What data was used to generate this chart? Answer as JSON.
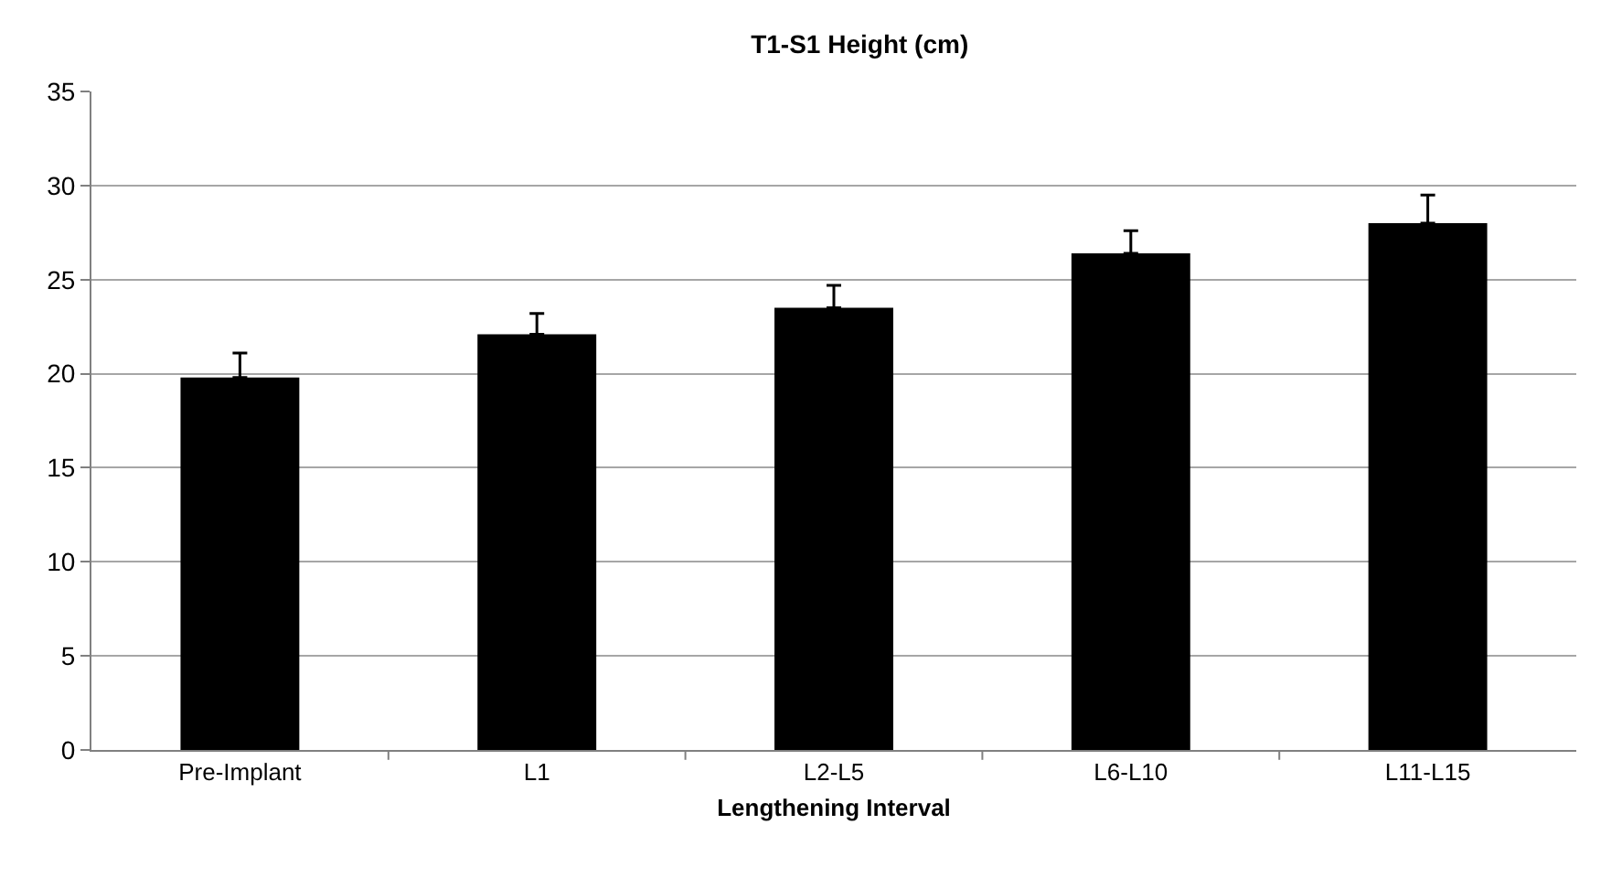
{
  "chart_data": {
    "type": "bar",
    "title": "T1-S1 Height (cm)",
    "xlabel": "Lengthening Interval",
    "categories": [
      "Pre-Implant",
      "L1",
      "L2-L5",
      "L6-L10",
      "L11-L15"
    ],
    "values": [
      19.8,
      22.1,
      23.5,
      26.4,
      28.0
    ],
    "errors": [
      [
        19.8,
        21.1
      ],
      [
        22.1,
        23.2
      ],
      [
        23.5,
        24.7
      ],
      [
        26.4,
        27.6
      ],
      [
        28.0,
        29.5
      ]
    ],
    "color": "#000000",
    "ylim": [
      0,
      35
    ],
    "yticks": [
      0,
      5,
      10,
      15,
      20,
      25,
      30,
      35
    ],
    "grid": "y"
  }
}
